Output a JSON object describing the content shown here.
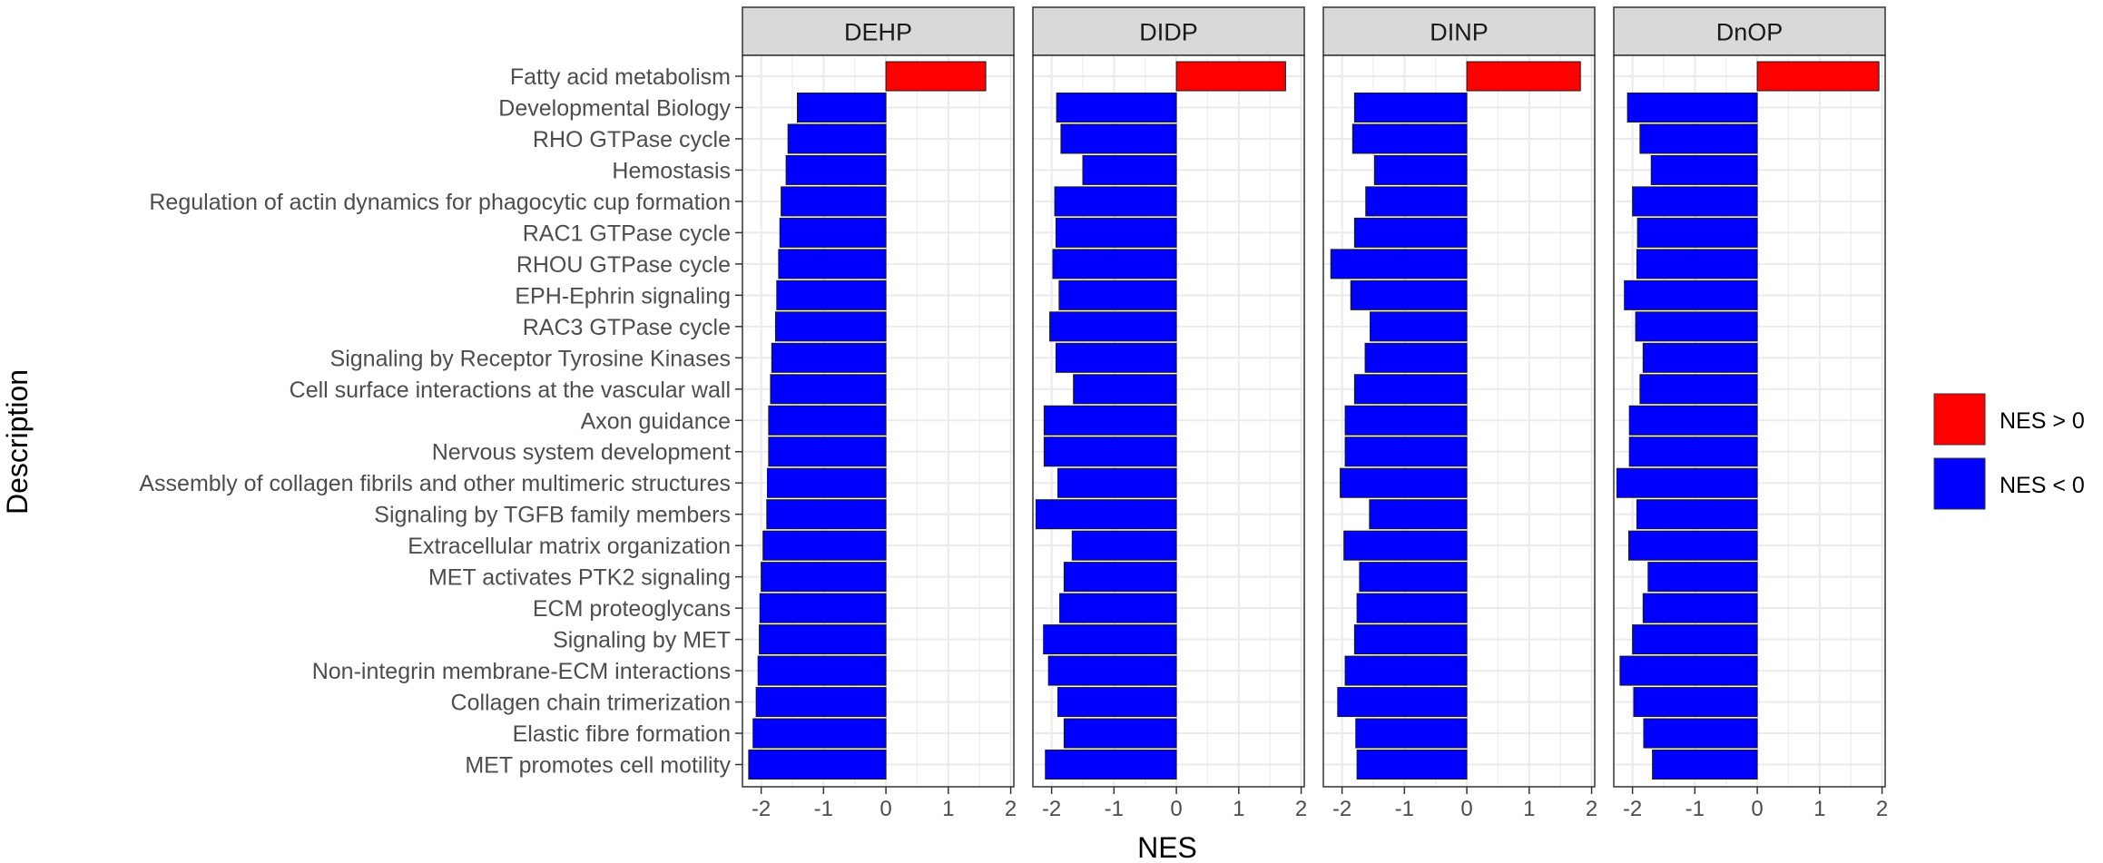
{
  "chart_data": {
    "type": "bar",
    "orientation": "horizontal",
    "xlabel": "NES",
    "ylabel": "Description",
    "xlim": [
      -2.3,
      2.05
    ],
    "xticks": [
      -2,
      -1,
      0,
      1,
      2
    ],
    "xtick_labels": [
      "-2",
      "-1",
      "0",
      "1",
      "2"
    ],
    "grid": true,
    "legend_position": "right",
    "colors": {
      "positive": "#ff0000",
      "negative": "#0000ff",
      "strip_bg": "#d9d9d9",
      "grid": "#ebebeb"
    },
    "legend": [
      {
        "label": "NES > 0",
        "color": "#ff0000"
      },
      {
        "label": "NES < 0",
        "color": "#0000ff"
      }
    ],
    "categories": [
      "Fatty acid metabolism",
      "Developmental Biology",
      "RHO GTPase cycle",
      "Hemostasis",
      "Regulation of actin dynamics for phagocytic cup formation",
      "RAC1 GTPase cycle",
      "RHOU GTPase cycle",
      "EPH-Ephrin signaling",
      "RAC3 GTPase cycle",
      "Signaling by Receptor Tyrosine Kinases",
      "Cell surface interactions at the vascular wall",
      "Axon guidance",
      "Nervous system development",
      "Assembly of collagen fibrils and other multimeric structures",
      "Signaling by TGFB family members",
      "Extracellular matrix organization",
      "MET activates PTK2 signaling",
      "ECM proteoglycans",
      "Signaling by MET",
      "Non-integrin membrane-ECM interactions",
      "Collagen chain trimerization",
      "Elastic fibre formation",
      "MET promotes cell motility"
    ],
    "series": [
      {
        "name": "DEHP",
        "values": [
          1.6,
          -1.42,
          -1.57,
          -1.6,
          -1.68,
          -1.7,
          -1.72,
          -1.75,
          -1.77,
          -1.83,
          -1.85,
          -1.88,
          -1.88,
          -1.9,
          -1.91,
          -1.97,
          -2.0,
          -2.02,
          -2.03,
          -2.05,
          -2.08,
          -2.13,
          -2.2
        ]
      },
      {
        "name": "DIDP",
        "values": [
          1.75,
          -1.92,
          -1.85,
          -1.5,
          -1.95,
          -1.93,
          -1.98,
          -1.88,
          -2.03,
          -1.93,
          -1.65,
          -2.12,
          -2.12,
          -1.9,
          -2.25,
          -1.67,
          -1.8,
          -1.87,
          -2.13,
          -2.05,
          -1.9,
          -1.8,
          -2.1
        ]
      },
      {
        "name": "DINP",
        "values": [
          1.82,
          -1.8,
          -1.83,
          -1.48,
          -1.62,
          -1.8,
          -2.18,
          -1.86,
          -1.55,
          -1.63,
          -1.8,
          -1.95,
          -1.95,
          -2.03,
          -1.56,
          -1.97,
          -1.72,
          -1.76,
          -1.8,
          -1.95,
          -2.07,
          -1.78,
          -1.76
        ]
      },
      {
        "name": "DnOP",
        "values": [
          1.95,
          -2.08,
          -1.88,
          -1.7,
          -2.0,
          -1.92,
          -1.93,
          -2.13,
          -1.95,
          -1.83,
          -1.88,
          -2.05,
          -2.05,
          -2.25,
          -1.93,
          -2.06,
          -1.75,
          -1.83,
          -2.0,
          -2.2,
          -1.98,
          -1.82,
          -1.68
        ]
      }
    ]
  }
}
